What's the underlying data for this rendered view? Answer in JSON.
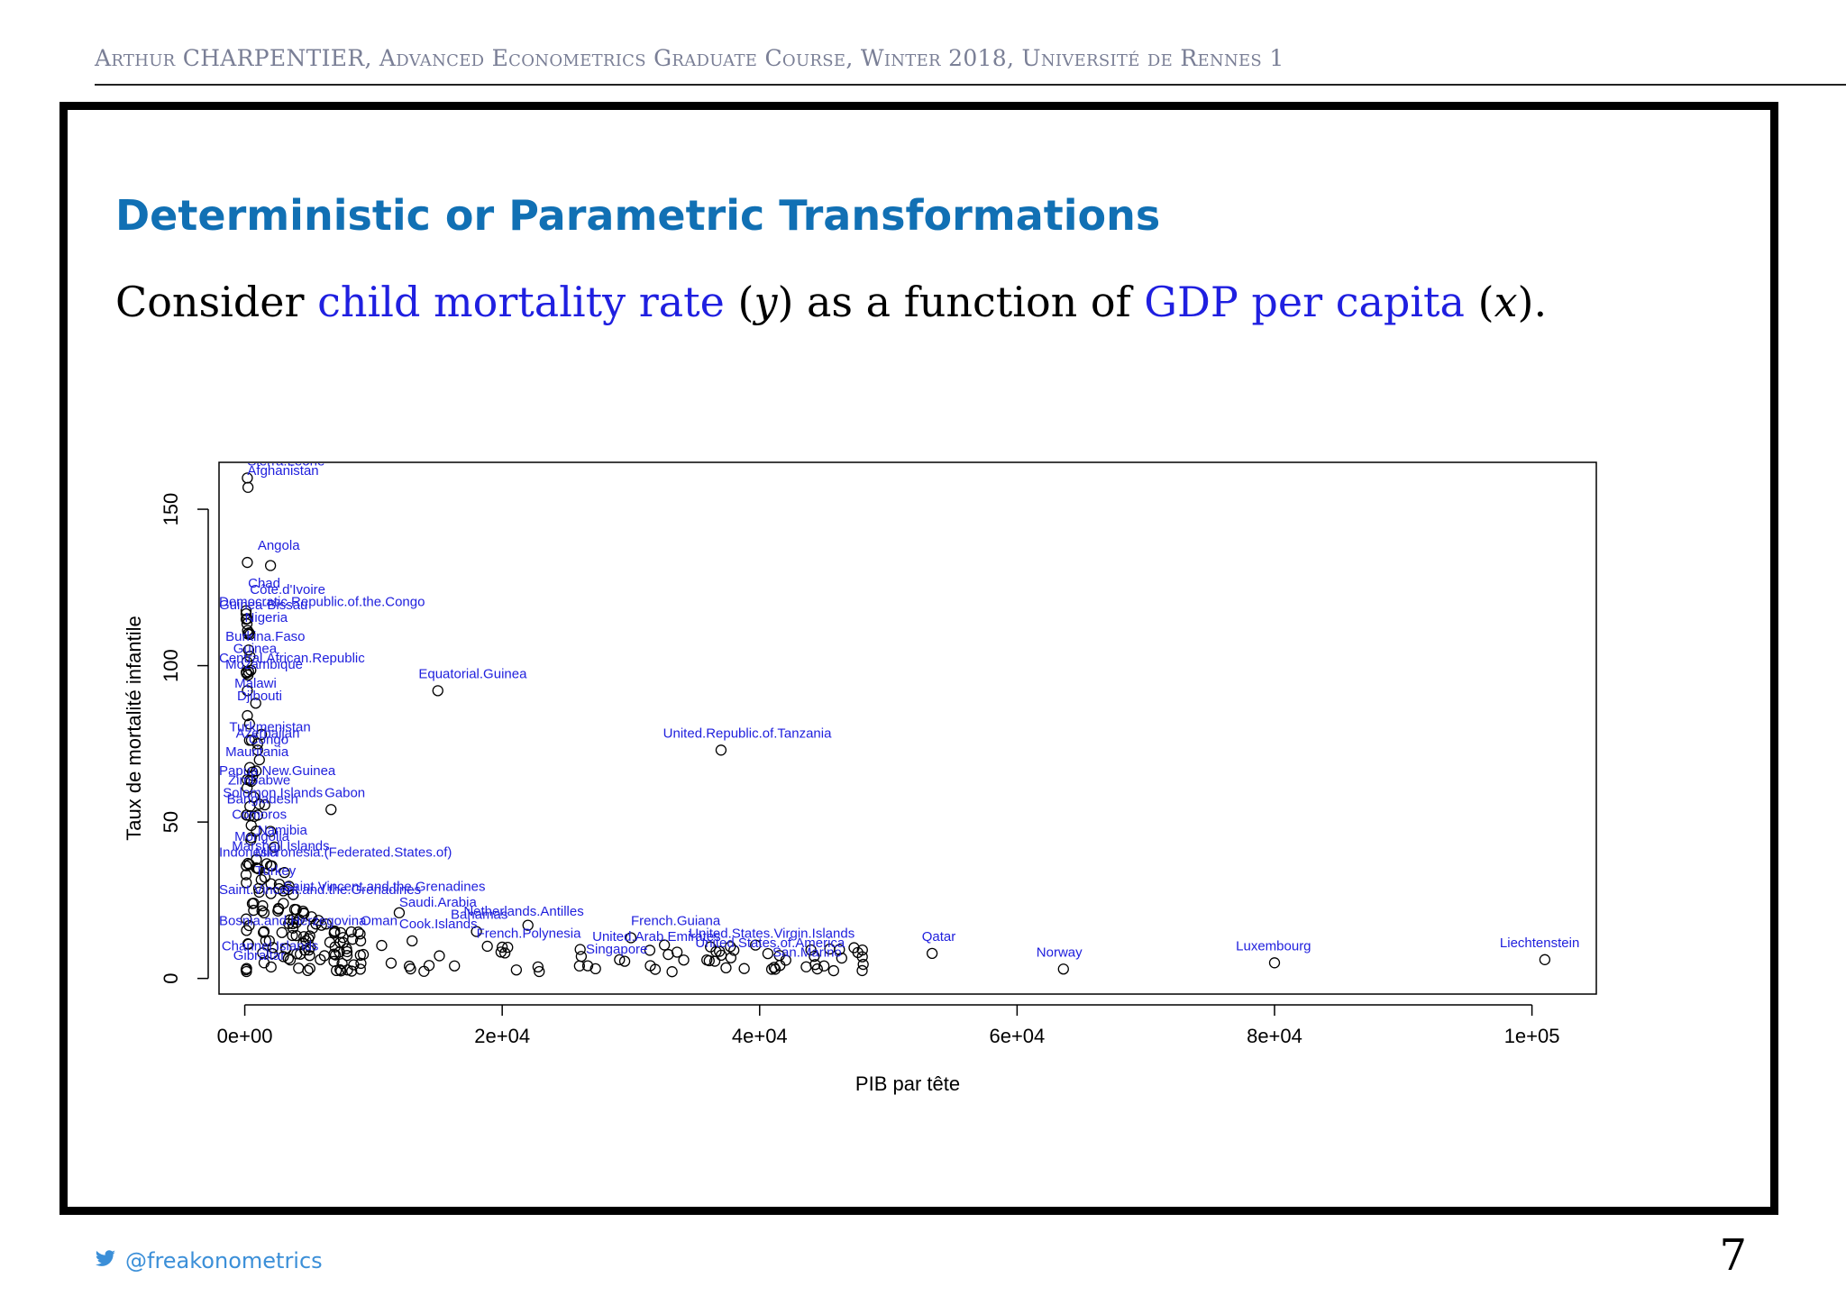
{
  "header": {
    "text": "Arthur CHARPENTIER, Advanced Econometrics Graduate Course, Winter 2018, Université de Rennes 1"
  },
  "slide": {
    "title": "Deterministic or Parametric Transformations",
    "sentence": {
      "p1": "Consider ",
      "y_term": "child mortality rate",
      "p2": " (",
      "y_sym": "y",
      "p3": ") as a function of ",
      "x_term": "GDP per capita",
      "p4": " (",
      "x_sym": "x",
      "p5": ")."
    },
    "page_number": "7"
  },
  "footer": {
    "handle": "@freakonometrics",
    "icon": "twitter-bird-icon",
    "color": "#3b8fd8"
  },
  "colors": {
    "title": "#1170b4",
    "highlight": "#1f1fe0",
    "point_label": "#2020dd"
  },
  "chart_data": {
    "type": "scatter",
    "xlabel": "PIB par tête",
    "ylabel": "Taux de mortalité infantile",
    "xlim": [
      -2000,
      105000
    ],
    "ylim": [
      -5,
      165
    ],
    "xticks": [
      {
        "v": 0,
        "label": "0e+00"
      },
      {
        "v": 20000,
        "label": "2e+04"
      },
      {
        "v": 40000,
        "label": "4e+04"
      },
      {
        "v": 60000,
        "label": "6e+04"
      },
      {
        "v": 80000,
        "label": "8e+04"
      },
      {
        "v": 100000,
        "label": "1e+05"
      }
    ],
    "yticks": [
      {
        "v": 0,
        "label": "0"
      },
      {
        "v": 50,
        "label": "50"
      },
      {
        "v": 100,
        "label": "100"
      },
      {
        "v": 150,
        "label": "150"
      }
    ],
    "grid": false,
    "labeled_points": [
      {
        "name": "Sierra.Leone",
        "x": 200,
        "y": 160
      },
      {
        "name": "Afghanistan",
        "x": 250,
        "y": 157
      },
      {
        "name": "Angola",
        "x": 2000,
        "y": 132
      },
      {
        "name": "Chad",
        "x": 200,
        "y": 133
      },
      {
        "name": "Equatorial.Guinea",
        "x": 15000,
        "y": 92
      },
      {
        "name": "United.Republic.of.Tanzania",
        "x": 37000,
        "y": 73
      },
      {
        "name": "Gabon",
        "x": 6700,
        "y": 54
      },
      {
        "name": "French.Guiana",
        "x": 30000,
        "y": 13
      },
      {
        "name": "United.States.Virgin.Islands",
        "x": 38000,
        "y": 9
      },
      {
        "name": "Qatar",
        "x": 53400,
        "y": 8
      },
      {
        "name": "Norway",
        "x": 63600,
        "y": 3
      },
      {
        "name": "Luxembourg",
        "x": 80000,
        "y": 5
      },
      {
        "name": "Liechtenstein",
        "x": 101000,
        "y": 6
      },
      {
        "name": "Saudi.Arabia",
        "x": 12000,
        "y": 21
      },
      {
        "name": "Netherlands.Antilles",
        "x": 22000,
        "y": 17
      },
      {
        "name": "Bahamas",
        "x": 18000,
        "y": 15
      },
      {
        "name": "Cook.Islands",
        "x": 13000,
        "y": 12
      },
      {
        "name": "French.Polynesia",
        "x": 20000,
        "y": 10
      },
      {
        "name": "Singapore",
        "x": 26000,
        "y": 4
      },
      {
        "name": "San.Marino",
        "x": 45000,
        "y": 4
      },
      {
        "name": "Grenadines",
        "x": 4000,
        "y": 22
      },
      {
        "name": "Gibraltar",
        "x": 1500,
        "y": 5
      },
      {
        "name": "Guinea-Bissau",
        "x": 200,
        "y": 115
      },
      {
        "name": "Nigeria",
        "x": 400,
        "y": 110
      },
      {
        "name": "Burkina.Faso",
        "x": 300,
        "y": 105
      },
      {
        "name": "Guinea",
        "x": 400,
        "y": 103
      },
      {
        "name": "Central.African.Republic",
        "x": 300,
        "y": 98
      },
      {
        "name": "Mozambique",
        "x": 250,
        "y": 97
      },
      {
        "name": "Malawi",
        "x": 200,
        "y": 92
      },
      {
        "name": "Djibouti",
        "x": 850,
        "y": 88
      },
      {
        "name": "Turkmenistan",
        "x": 1300,
        "y": 78
      },
      {
        "name": "Azerbaijan",
        "x": 1000,
        "y": 75
      },
      {
        "name": "Congo",
        "x": 1000,
        "y": 73
      },
      {
        "name": "Papua.New.Guinea",
        "x": 600,
        "y": 66
      },
      {
        "name": "Zimbabwe",
        "x": 500,
        "y": 63
      },
      {
        "name": "Solomon.Islands",
        "x": 700,
        "y": 58
      },
      {
        "name": "Bangladesh",
        "x": 400,
        "y": 55
      },
      {
        "name": "Comoros",
        "x": 400,
        "y": 52
      },
      {
        "name": "Namibia",
        "x": 2000,
        "y": 47
      },
      {
        "name": "Mongolia",
        "x": 500,
        "y": 45
      },
      {
        "name": "Marshall.Islands",
        "x": 2300,
        "y": 42
      },
      {
        "name": "Indonesia",
        "x": 900,
        "y": 38
      },
      {
        "name": "Micronesia.(Federated.States.of)",
        "x": 2000,
        "y": 36
      },
      {
        "name": "Turkey",
        "x": 3000,
        "y": 28
      },
      {
        "name": "Saint.Vincent.and.the.Grenadines",
        "x": 3000,
        "y": 24
      },
      {
        "name": "Bosnia.and.Herzegovina",
        "x": 1500,
        "y": 15
      },
      {
        "name": "Oman",
        "x": 9000,
        "y": 12
      },
      {
        "name": "Channel.Islands",
        "x": 3000,
        "y": 7
      }
    ],
    "visible_labels": [
      {
        "t": "Sierra.Leone",
        "x": 200,
        "y": 164
      },
      {
        "t": "Afghanistan",
        "x": 200,
        "y": 161
      },
      {
        "t": "Angola",
        "x": 1000,
        "y": 137
      },
      {
        "t": "Chad",
        "x": 250,
        "y": 125
      },
      {
        "t": "Côte.d'Ivoire",
        "x": 400,
        "y": 123
      },
      {
        "t": "Democratic.Republic.of.the.Congo",
        "x": -2000,
        "y": 119
      },
      {
        "t": "Guinea-Bissau",
        "x": -2000,
        "y": 118
      },
      {
        "t": "Nigeria",
        "x": 0,
        "y": 114
      },
      {
        "t": "Burkina.Faso",
        "x": -1500,
        "y": 108
      },
      {
        "t": "Guinea",
        "x": -900,
        "y": 104
      },
      {
        "t": "Central.African.Republic",
        "x": -2000,
        "y": 101
      },
      {
        "t": "Mozambique",
        "x": -1500,
        "y": 99
      },
      {
        "t": "Malawi",
        "x": -800,
        "y": 93
      },
      {
        "t": "Djibouti",
        "x": -600,
        "y": 89
      },
      {
        "t": "Turkmenistan",
        "x": -1200,
        "y": 79
      },
      {
        "t": "Azerbaijan",
        "x": -700,
        "y": 77
      },
      {
        "t": "Congo",
        "x": 300,
        "y": 75
      },
      {
        "t": "Mauritania",
        "x": -1500,
        "y": 71
      },
      {
        "t": "Papua.New.Guinea",
        "x": -2000,
        "y": 65
      },
      {
        "t": "Zimbabwe",
        "x": -1300,
        "y": 62
      },
      {
        "t": "Solomon.Islands",
        "x": -1700,
        "y": 58
      },
      {
        "t": "Bangladesh",
        "x": -1400,
        "y": 56
      },
      {
        "t": "Gabon",
        "x": 6200,
        "y": 58
      },
      {
        "t": "Comoros",
        "x": -1000,
        "y": 51
      },
      {
        "t": "Namibia",
        "x": 1000,
        "y": 46
      },
      {
        "t": "Mongolia",
        "x": -800,
        "y": 44
      },
      {
        "t": "Marshall.Islands",
        "x": -1000,
        "y": 41
      },
      {
        "t": "Indonesia",
        "x": -2000,
        "y": 39
      },
      {
        "t": "Micronesia.(Federated.States.of)",
        "x": 800,
        "y": 39
      },
      {
        "t": "Turkey",
        "x": 800,
        "y": 33
      },
      {
        "t": "Saint.Vincent.and.the.Grenadines",
        "x": -2000,
        "y": 27
      },
      {
        "t": "Saint.Vincent.and.the.Grenadines",
        "x": 3000,
        "y": 28
      },
      {
        "t": "Saudi.Arabia",
        "x": 12000,
        "y": 23
      },
      {
        "t": "Netherlands.Antilles",
        "x": 17000,
        "y": 20
      },
      {
        "t": "Bahamas",
        "x": 16000,
        "y": 19
      },
      {
        "t": "Cook.Islands",
        "x": 12000,
        "y": 16
      },
      {
        "t": "Oman",
        "x": 9000,
        "y": 17
      },
      {
        "t": "Bosnia.and.Herzegovina",
        "x": -2000,
        "y": 17
      },
      {
        "t": "French.Polynesia",
        "x": 18000,
        "y": 13
      },
      {
        "t": "Equatorial.Guinea",
        "x": 13500,
        "y": 96
      },
      {
        "t": "United.Republic.of.Tanzania",
        "x": 32500,
        "y": 77
      },
      {
        "t": "French.Guiana",
        "x": 30000,
        "y": 17
      },
      {
        "t": "United.States.Virgin.Islands",
        "x": 34500,
        "y": 13
      },
      {
        "t": "United.Arab.Emirates",
        "x": 27000,
        "y": 12
      },
      {
        "t": "United.States.of.America",
        "x": 35000,
        "y": 10
      },
      {
        "t": "Singapore",
        "x": 26500,
        "y": 8
      },
      {
        "t": "San.Marino",
        "x": 41000,
        "y": 7
      },
      {
        "t": "Qatar",
        "x": 52600,
        "y": 12
      },
      {
        "t": "Norway",
        "x": 61500,
        "y": 7
      },
      {
        "t": "Luxembourg",
        "x": 77000,
        "y": 9
      },
      {
        "t": "Liechtenstein",
        "x": 97500,
        "y": 10
      },
      {
        "t": "Channel.Islands",
        "x": -1800,
        "y": 9
      },
      {
        "t": "Gibraltar",
        "x": -900,
        "y": 6
      }
    ]
  }
}
